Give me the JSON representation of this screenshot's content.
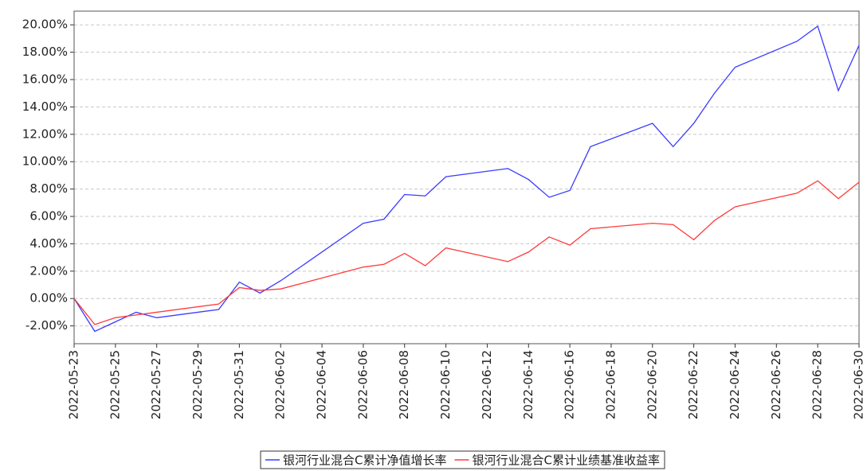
{
  "chart_data": {
    "type": "line",
    "x": [
      "2022-05-23",
      "2022-05-24",
      "2022-05-25",
      "2022-05-26",
      "2022-05-27",
      "2022-05-30",
      "2022-05-31",
      "2022-06-01",
      "2022-06-02",
      "2022-06-06",
      "2022-06-07",
      "2022-06-08",
      "2022-06-09",
      "2022-06-10",
      "2022-06-13",
      "2022-06-14",
      "2022-06-15",
      "2022-06-16",
      "2022-06-17",
      "2022-06-20",
      "2022-06-21",
      "2022-06-22",
      "2022-06-23",
      "2022-06-24",
      "2022-06-27",
      "2022-06-28",
      "2022-06-29",
      "2022-06-30"
    ],
    "series": [
      {
        "name": "银河行业混合C累计净值增长率",
        "color": "#3b3bff",
        "values": [
          0,
          -2.4,
          -1.7,
          -1.0,
          -1.4,
          -0.8,
          1.2,
          0.4,
          1.3,
          5.5,
          5.8,
          7.6,
          7.5,
          8.9,
          9.5,
          8.7,
          7.4,
          7.9,
          11.1,
          12.8,
          11.1,
          12.8,
          15.0,
          16.9,
          18.8,
          19.9,
          15.2,
          18.5
        ]
      },
      {
        "name": "银河行业混合C累计业绩基准收益率",
        "color": "#ff3b3b",
        "values": [
          0,
          -1.9,
          -1.4,
          -1.2,
          -1.0,
          -0.4,
          0.8,
          0.6,
          0.7,
          2.3,
          2.5,
          3.3,
          2.4,
          3.7,
          2.7,
          3.4,
          4.5,
          3.9,
          5.1,
          5.5,
          5.4,
          4.3,
          5.7,
          6.7,
          7.7,
          8.6,
          7.3,
          8.5
        ]
      }
    ],
    "xlim": [
      "2022-05-23",
      "2022-06-30"
    ],
    "xticks": [
      "2022-05-23",
      "2022-05-25",
      "2022-05-27",
      "2022-05-29",
      "2022-05-31",
      "2022-06-02",
      "2022-06-04",
      "2022-06-06",
      "2022-06-08",
      "2022-06-10",
      "2022-06-12",
      "2022-06-14",
      "2022-06-16",
      "2022-06-18",
      "2022-06-20",
      "2022-06-22",
      "2022-06-24",
      "2022-06-26",
      "2022-06-28",
      "2022-06-30"
    ],
    "ylim": [
      -3.3,
      21.0
    ],
    "yticks": [
      {
        "value": -2,
        "label": "-2.00%"
      },
      {
        "value": 0,
        "label": "0.00%"
      },
      {
        "value": 2,
        "label": "2.00%"
      },
      {
        "value": 4,
        "label": "4.00%"
      },
      {
        "value": 6,
        "label": "6.00%"
      },
      {
        "value": 8,
        "label": "8.00%"
      },
      {
        "value": 10,
        "label": "10.00%"
      },
      {
        "value": 12,
        "label": "12.00%"
      },
      {
        "value": 14,
        "label": "14.00%"
      },
      {
        "value": 16,
        "label": "16.00%"
      },
      {
        "value": 18,
        "label": "18.00%"
      },
      {
        "value": 20,
        "label": "20.00%"
      }
    ],
    "grid": true,
    "legend": "bottom"
  }
}
